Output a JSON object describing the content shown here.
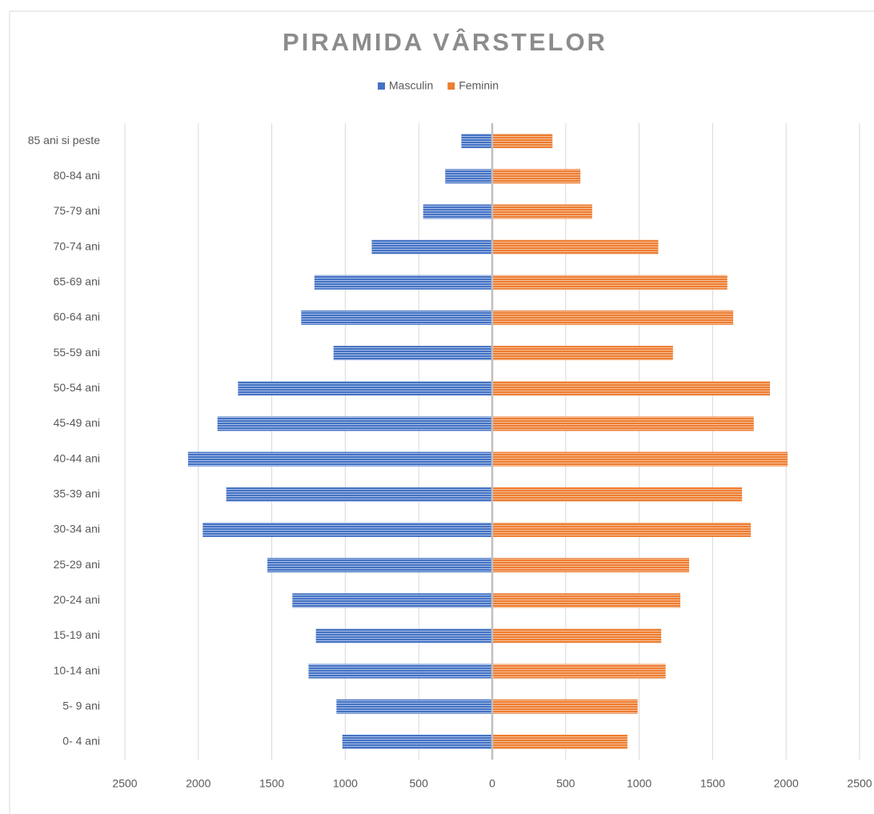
{
  "chart_data": {
    "type": "bar",
    "orientation": "horizontal",
    "title": "PIRAMIDA VÂRSTELOR",
    "categories": [
      "0- 4 ani",
      "5- 9 ani",
      "10-14 ani",
      "15-19 ani",
      "20-24 ani",
      "25-29 ani",
      "30-34 ani",
      "35-39 ani",
      "40-44 ani",
      "45-49 ani",
      "50-54 ani",
      "55-59 ani",
      "60-64 ani",
      "65-69 ani",
      "70-74 ani",
      "75-79 ani",
      "80-84 ani",
      "85 ani si peste"
    ],
    "series": [
      {
        "name": "Masculin",
        "color": "#4472c4",
        "values": [
          -1020,
          -1060,
          -1250,
          -1200,
          -1360,
          -1530,
          -1970,
          -1810,
          -2070,
          -1870,
          -1730,
          -1080,
          -1300,
          -1210,
          -820,
          -470,
          -320,
          -210
        ]
      },
      {
        "name": "Feminin",
        "color": "#ed7d31",
        "values": [
          920,
          990,
          1180,
          1150,
          1280,
          1340,
          1760,
          1700,
          2010,
          1780,
          1890,
          1230,
          1640,
          1600,
          1130,
          680,
          600,
          410
        ]
      }
    ],
    "xlim": [
      -2500,
      2500
    ],
    "xticks": [
      {
        "value": -2500,
        "label": "2500"
      },
      {
        "value": -2000,
        "label": "2000"
      },
      {
        "value": -1500,
        "label": "1500"
      },
      {
        "value": -1000,
        "label": "1000"
      },
      {
        "value": -500,
        "label": "500"
      },
      0,
      500,
      1000,
      1500,
      2000,
      2500
    ],
    "grid": true,
    "legend": "top"
  }
}
